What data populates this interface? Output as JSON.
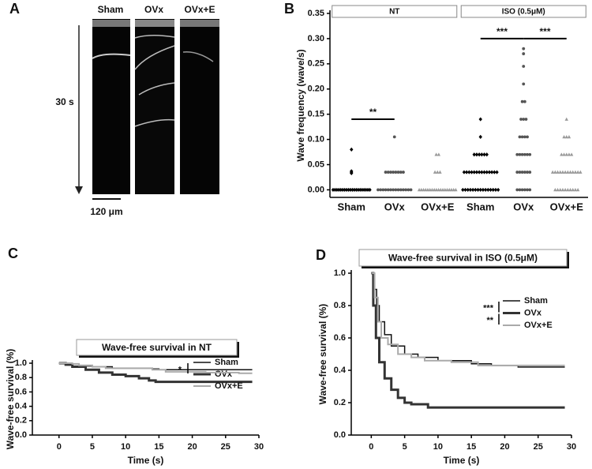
{
  "panel_labels": [
    "A",
    "B",
    "C",
    "D"
  ],
  "line_scan": {
    "groups": [
      "Sham",
      "OVx",
      "OVx+E"
    ],
    "time_label": "30 s",
    "scale_label": "120 μm"
  },
  "chart_data": [
    {
      "type": "strip",
      "ylabel": "Wave frequency (wave/s)",
      "categories": [
        "Sham",
        "OVx",
        "OVx+E",
        "Sham",
        "OVx",
        "OVx+E"
      ],
      "colors": [
        "#000000",
        "#555555",
        "#999999",
        "#000000",
        "#555555",
        "#999999"
      ],
      "markers": [
        "diamond",
        "circle",
        "triangle",
        "diamond",
        "circle",
        "triangle"
      ],
      "groups": [
        {
          "label": "NT",
          "span": [
            0,
            2
          ]
        },
        {
          "label": "ISO (0.5μM)",
          "span": [
            3,
            5
          ]
        }
      ],
      "annotations": [
        {
          "label": "**",
          "span": [
            0,
            1
          ],
          "y": 0.14
        },
        {
          "label": "***",
          "span": [
            3,
            4
          ],
          "y": 0.3
        },
        {
          "label": "***",
          "span": [
            4,
            5
          ],
          "y": 0.3
        }
      ],
      "values": [
        [
          0,
          0,
          0,
          0,
          0,
          0,
          0,
          0,
          0,
          0,
          0,
          0,
          0,
          0,
          0,
          0,
          0,
          0,
          0,
          0,
          0.033,
          0.035,
          0.037,
          0.08
        ],
        [
          0,
          0,
          0,
          0,
          0,
          0,
          0,
          0,
          0,
          0,
          0,
          0,
          0,
          0,
          0.035,
          0.035,
          0.035,
          0.035,
          0.035,
          0.035,
          0.035,
          0.035,
          0.105
        ],
        [
          0,
          0,
          0,
          0,
          0,
          0,
          0,
          0,
          0,
          0,
          0,
          0,
          0,
          0,
          0,
          0,
          0,
          0,
          0.035,
          0.035,
          0.035,
          0.07,
          0.07
        ],
        [
          0,
          0,
          0,
          0,
          0,
          0,
          0,
          0,
          0,
          0,
          0,
          0,
          0,
          0,
          0,
          0.035,
          0.035,
          0.035,
          0.035,
          0.035,
          0.035,
          0.035,
          0.035,
          0.035,
          0.035,
          0.035,
          0.035,
          0.035,
          0.035,
          0.07,
          0.07,
          0.07,
          0.07,
          0.07,
          0.07,
          0.105,
          0.14
        ],
        [
          0,
          0,
          0,
          0,
          0,
          0,
          0.035,
          0.035,
          0.035,
          0.035,
          0.035,
          0.035,
          0.07,
          0.07,
          0.07,
          0.07,
          0.07,
          0.07,
          0.105,
          0.105,
          0.105,
          0.105,
          0.14,
          0.14,
          0.14,
          0.175,
          0.175,
          0.21,
          0.245,
          0.27,
          0.28
        ],
        [
          0,
          0,
          0,
          0,
          0,
          0,
          0,
          0,
          0,
          0,
          0.035,
          0.035,
          0.035,
          0.035,
          0.035,
          0.035,
          0.035,
          0.035,
          0.035,
          0.035,
          0.035,
          0.035,
          0.07,
          0.07,
          0.07,
          0.07,
          0.07,
          0.105,
          0.105,
          0.105,
          0.14
        ]
      ],
      "ylim": [
        -0.015,
        0.35
      ],
      "yticks": [
        {
          "value": 0,
          "label": "0.00"
        },
        {
          "value": 0.05,
          "label": "0.05"
        },
        {
          "value": 0.1,
          "label": "0.10"
        },
        {
          "value": 0.15,
          "label": "0.15"
        },
        {
          "value": 0.2,
          "label": "0.20"
        },
        {
          "value": 0.25,
          "label": "0.25"
        },
        {
          "value": 0.3,
          "label": "0.30"
        },
        {
          "value": 0.35,
          "label": "0.35"
        }
      ]
    },
    {
      "type": "step",
      "title": "Wave-free survival in NT",
      "xlabel": "Time (s)",
      "ylabel": "Wave-free survival (%)",
      "series": [
        {
          "name": "Sham",
          "color": "#111111",
          "width": 1.5,
          "x": [
            0,
            1,
            2,
            5,
            8,
            14,
            15,
            29
          ],
          "values": [
            1.0,
            0.98,
            0.96,
            0.95,
            0.93,
            0.92,
            0.91,
            0.91
          ]
        },
        {
          "name": "OVx",
          "color": "#333333",
          "width": 3,
          "x": [
            0,
            1,
            2,
            4,
            6,
            8,
            10,
            12,
            13.5,
            14.5,
            29
          ],
          "values": [
            1.0,
            0.98,
            0.95,
            0.91,
            0.87,
            0.84,
            0.82,
            0.79,
            0.76,
            0.74,
            0.74
          ]
        },
        {
          "name": "OVx+E",
          "color": "#aaaaaa",
          "width": 2,
          "x": [
            0,
            2,
            3,
            5,
            7,
            14,
            16,
            22,
            27,
            29
          ],
          "values": [
            1.0,
            0.99,
            0.97,
            0.95,
            0.93,
            0.91,
            0.88,
            0.87,
            0.86,
            0.86
          ]
        }
      ],
      "significance": [
        {
          "label": "*",
          "span": [
            0,
            1
          ]
        }
      ],
      "xlim": [
        -4,
        30
      ],
      "xticks": [
        0,
        5,
        10,
        15,
        20,
        25,
        30
      ],
      "ylim": [
        0,
        1.0
      ],
      "yticks": [
        {
          "value": 0,
          "label": "0.0"
        },
        {
          "value": 0.2,
          "label": "0.2"
        },
        {
          "value": 0.4,
          "label": "0.4"
        },
        {
          "value": 0.6,
          "label": "0.6"
        },
        {
          "value": 0.8,
          "label": "0.8"
        },
        {
          "value": 1.0,
          "label": "1.0"
        }
      ]
    },
    {
      "type": "step",
      "title": "Wave-free survival in ISO (0.5μM)",
      "xlabel": "Time (s)",
      "ylabel": "Wave-free survival (%)",
      "series": [
        {
          "name": "Sham",
          "color": "#111111",
          "width": 1.5,
          "x": [
            0.2,
            0.5,
            0.8,
            1.2,
            2,
            3,
            5,
            7,
            10,
            15,
            18,
            22,
            29
          ],
          "values": [
            1.0,
            0.9,
            0.8,
            0.7,
            0.62,
            0.55,
            0.5,
            0.48,
            0.46,
            0.44,
            0.43,
            0.42,
            0.42
          ]
        },
        {
          "name": "OVx",
          "color": "#333333",
          "width": 3,
          "x": [
            0,
            0.3,
            0.7,
            1.2,
            2,
            3,
            4,
            5,
            6,
            8.5,
            29
          ],
          "values": [
            1.0,
            0.8,
            0.6,
            0.45,
            0.35,
            0.28,
            0.23,
            0.2,
            0.19,
            0.17,
            0.17
          ]
        },
        {
          "name": "OVx+E",
          "color": "#aaaaaa",
          "width": 2,
          "x": [
            0.1,
            0.5,
            1,
            1.5,
            2.5,
            4,
            6,
            8,
            12,
            16,
            29
          ],
          "values": [
            1.0,
            0.85,
            0.7,
            0.6,
            0.56,
            0.5,
            0.48,
            0.46,
            0.45,
            0.43,
            0.43
          ]
        }
      ],
      "significance": [
        {
          "label": "***",
          "span": [
            0,
            1
          ]
        },
        {
          "label": "**",
          "span": [
            1,
            2
          ]
        }
      ],
      "xlim": [
        -3,
        30
      ],
      "xticks": [
        0,
        5,
        10,
        15,
        20,
        25,
        30
      ],
      "ylim": [
        0,
        1.0
      ],
      "yticks": [
        {
          "value": 0,
          "label": "0.0"
        },
        {
          "value": 0.2,
          "label": "0.2"
        },
        {
          "value": 0.4,
          "label": "0.4"
        },
        {
          "value": 0.6,
          "label": "0.6"
        },
        {
          "value": 0.8,
          "label": "0.8"
        },
        {
          "value": 1.0,
          "label": "1.0"
        }
      ]
    }
  ]
}
